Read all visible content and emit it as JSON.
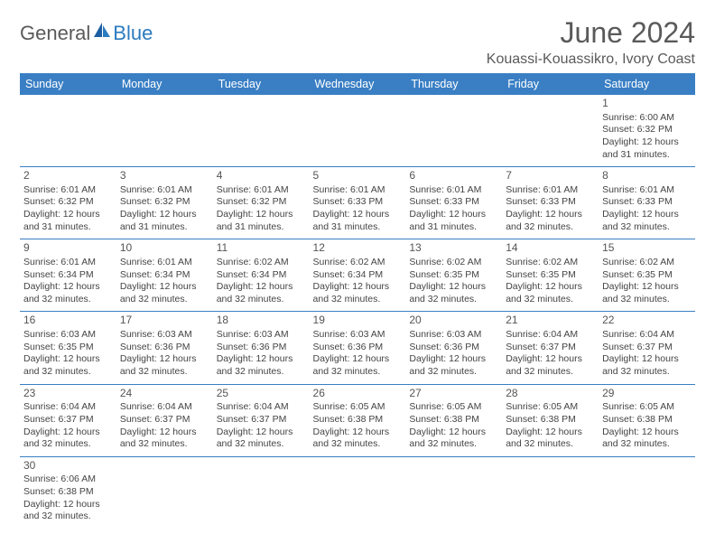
{
  "logo": {
    "part1": "General",
    "part2": "Blue"
  },
  "title": "June 2024",
  "location": "Kouassi-Kouassikro, Ivory Coast",
  "colors": {
    "header_bg": "#3a7fc4",
    "header_text": "#ffffff",
    "row_border": "#3a7fc4",
    "text": "#444444",
    "title_text": "#5a5a5a"
  },
  "weekdays": [
    "Sunday",
    "Monday",
    "Tuesday",
    "Wednesday",
    "Thursday",
    "Friday",
    "Saturday"
  ],
  "first_day_index": 6,
  "days": [
    {
      "n": 1,
      "sunrise": "6:00 AM",
      "sunset": "6:32 PM",
      "daylight": "12 hours and 31 minutes."
    },
    {
      "n": 2,
      "sunrise": "6:01 AM",
      "sunset": "6:32 PM",
      "daylight": "12 hours and 31 minutes."
    },
    {
      "n": 3,
      "sunrise": "6:01 AM",
      "sunset": "6:32 PM",
      "daylight": "12 hours and 31 minutes."
    },
    {
      "n": 4,
      "sunrise": "6:01 AM",
      "sunset": "6:32 PM",
      "daylight": "12 hours and 31 minutes."
    },
    {
      "n": 5,
      "sunrise": "6:01 AM",
      "sunset": "6:33 PM",
      "daylight": "12 hours and 31 minutes."
    },
    {
      "n": 6,
      "sunrise": "6:01 AM",
      "sunset": "6:33 PM",
      "daylight": "12 hours and 31 minutes."
    },
    {
      "n": 7,
      "sunrise": "6:01 AM",
      "sunset": "6:33 PM",
      "daylight": "12 hours and 32 minutes."
    },
    {
      "n": 8,
      "sunrise": "6:01 AM",
      "sunset": "6:33 PM",
      "daylight": "12 hours and 32 minutes."
    },
    {
      "n": 9,
      "sunrise": "6:01 AM",
      "sunset": "6:34 PM",
      "daylight": "12 hours and 32 minutes."
    },
    {
      "n": 10,
      "sunrise": "6:01 AM",
      "sunset": "6:34 PM",
      "daylight": "12 hours and 32 minutes."
    },
    {
      "n": 11,
      "sunrise": "6:02 AM",
      "sunset": "6:34 PM",
      "daylight": "12 hours and 32 minutes."
    },
    {
      "n": 12,
      "sunrise": "6:02 AM",
      "sunset": "6:34 PM",
      "daylight": "12 hours and 32 minutes."
    },
    {
      "n": 13,
      "sunrise": "6:02 AM",
      "sunset": "6:35 PM",
      "daylight": "12 hours and 32 minutes."
    },
    {
      "n": 14,
      "sunrise": "6:02 AM",
      "sunset": "6:35 PM",
      "daylight": "12 hours and 32 minutes."
    },
    {
      "n": 15,
      "sunrise": "6:02 AM",
      "sunset": "6:35 PM",
      "daylight": "12 hours and 32 minutes."
    },
    {
      "n": 16,
      "sunrise": "6:03 AM",
      "sunset": "6:35 PM",
      "daylight": "12 hours and 32 minutes."
    },
    {
      "n": 17,
      "sunrise": "6:03 AM",
      "sunset": "6:36 PM",
      "daylight": "12 hours and 32 minutes."
    },
    {
      "n": 18,
      "sunrise": "6:03 AM",
      "sunset": "6:36 PM",
      "daylight": "12 hours and 32 minutes."
    },
    {
      "n": 19,
      "sunrise": "6:03 AM",
      "sunset": "6:36 PM",
      "daylight": "12 hours and 32 minutes."
    },
    {
      "n": 20,
      "sunrise": "6:03 AM",
      "sunset": "6:36 PM",
      "daylight": "12 hours and 32 minutes."
    },
    {
      "n": 21,
      "sunrise": "6:04 AM",
      "sunset": "6:37 PM",
      "daylight": "12 hours and 32 minutes."
    },
    {
      "n": 22,
      "sunrise": "6:04 AM",
      "sunset": "6:37 PM",
      "daylight": "12 hours and 32 minutes."
    },
    {
      "n": 23,
      "sunrise": "6:04 AM",
      "sunset": "6:37 PM",
      "daylight": "12 hours and 32 minutes."
    },
    {
      "n": 24,
      "sunrise": "6:04 AM",
      "sunset": "6:37 PM",
      "daylight": "12 hours and 32 minutes."
    },
    {
      "n": 25,
      "sunrise": "6:04 AM",
      "sunset": "6:37 PM",
      "daylight": "12 hours and 32 minutes."
    },
    {
      "n": 26,
      "sunrise": "6:05 AM",
      "sunset": "6:38 PM",
      "daylight": "12 hours and 32 minutes."
    },
    {
      "n": 27,
      "sunrise": "6:05 AM",
      "sunset": "6:38 PM",
      "daylight": "12 hours and 32 minutes."
    },
    {
      "n": 28,
      "sunrise": "6:05 AM",
      "sunset": "6:38 PM",
      "daylight": "12 hours and 32 minutes."
    },
    {
      "n": 29,
      "sunrise": "6:05 AM",
      "sunset": "6:38 PM",
      "daylight": "12 hours and 32 minutes."
    },
    {
      "n": 30,
      "sunrise": "6:06 AM",
      "sunset": "6:38 PM",
      "daylight": "12 hours and 32 minutes."
    }
  ],
  "labels": {
    "sunrise": "Sunrise:",
    "sunset": "Sunset:",
    "daylight": "Daylight:"
  }
}
